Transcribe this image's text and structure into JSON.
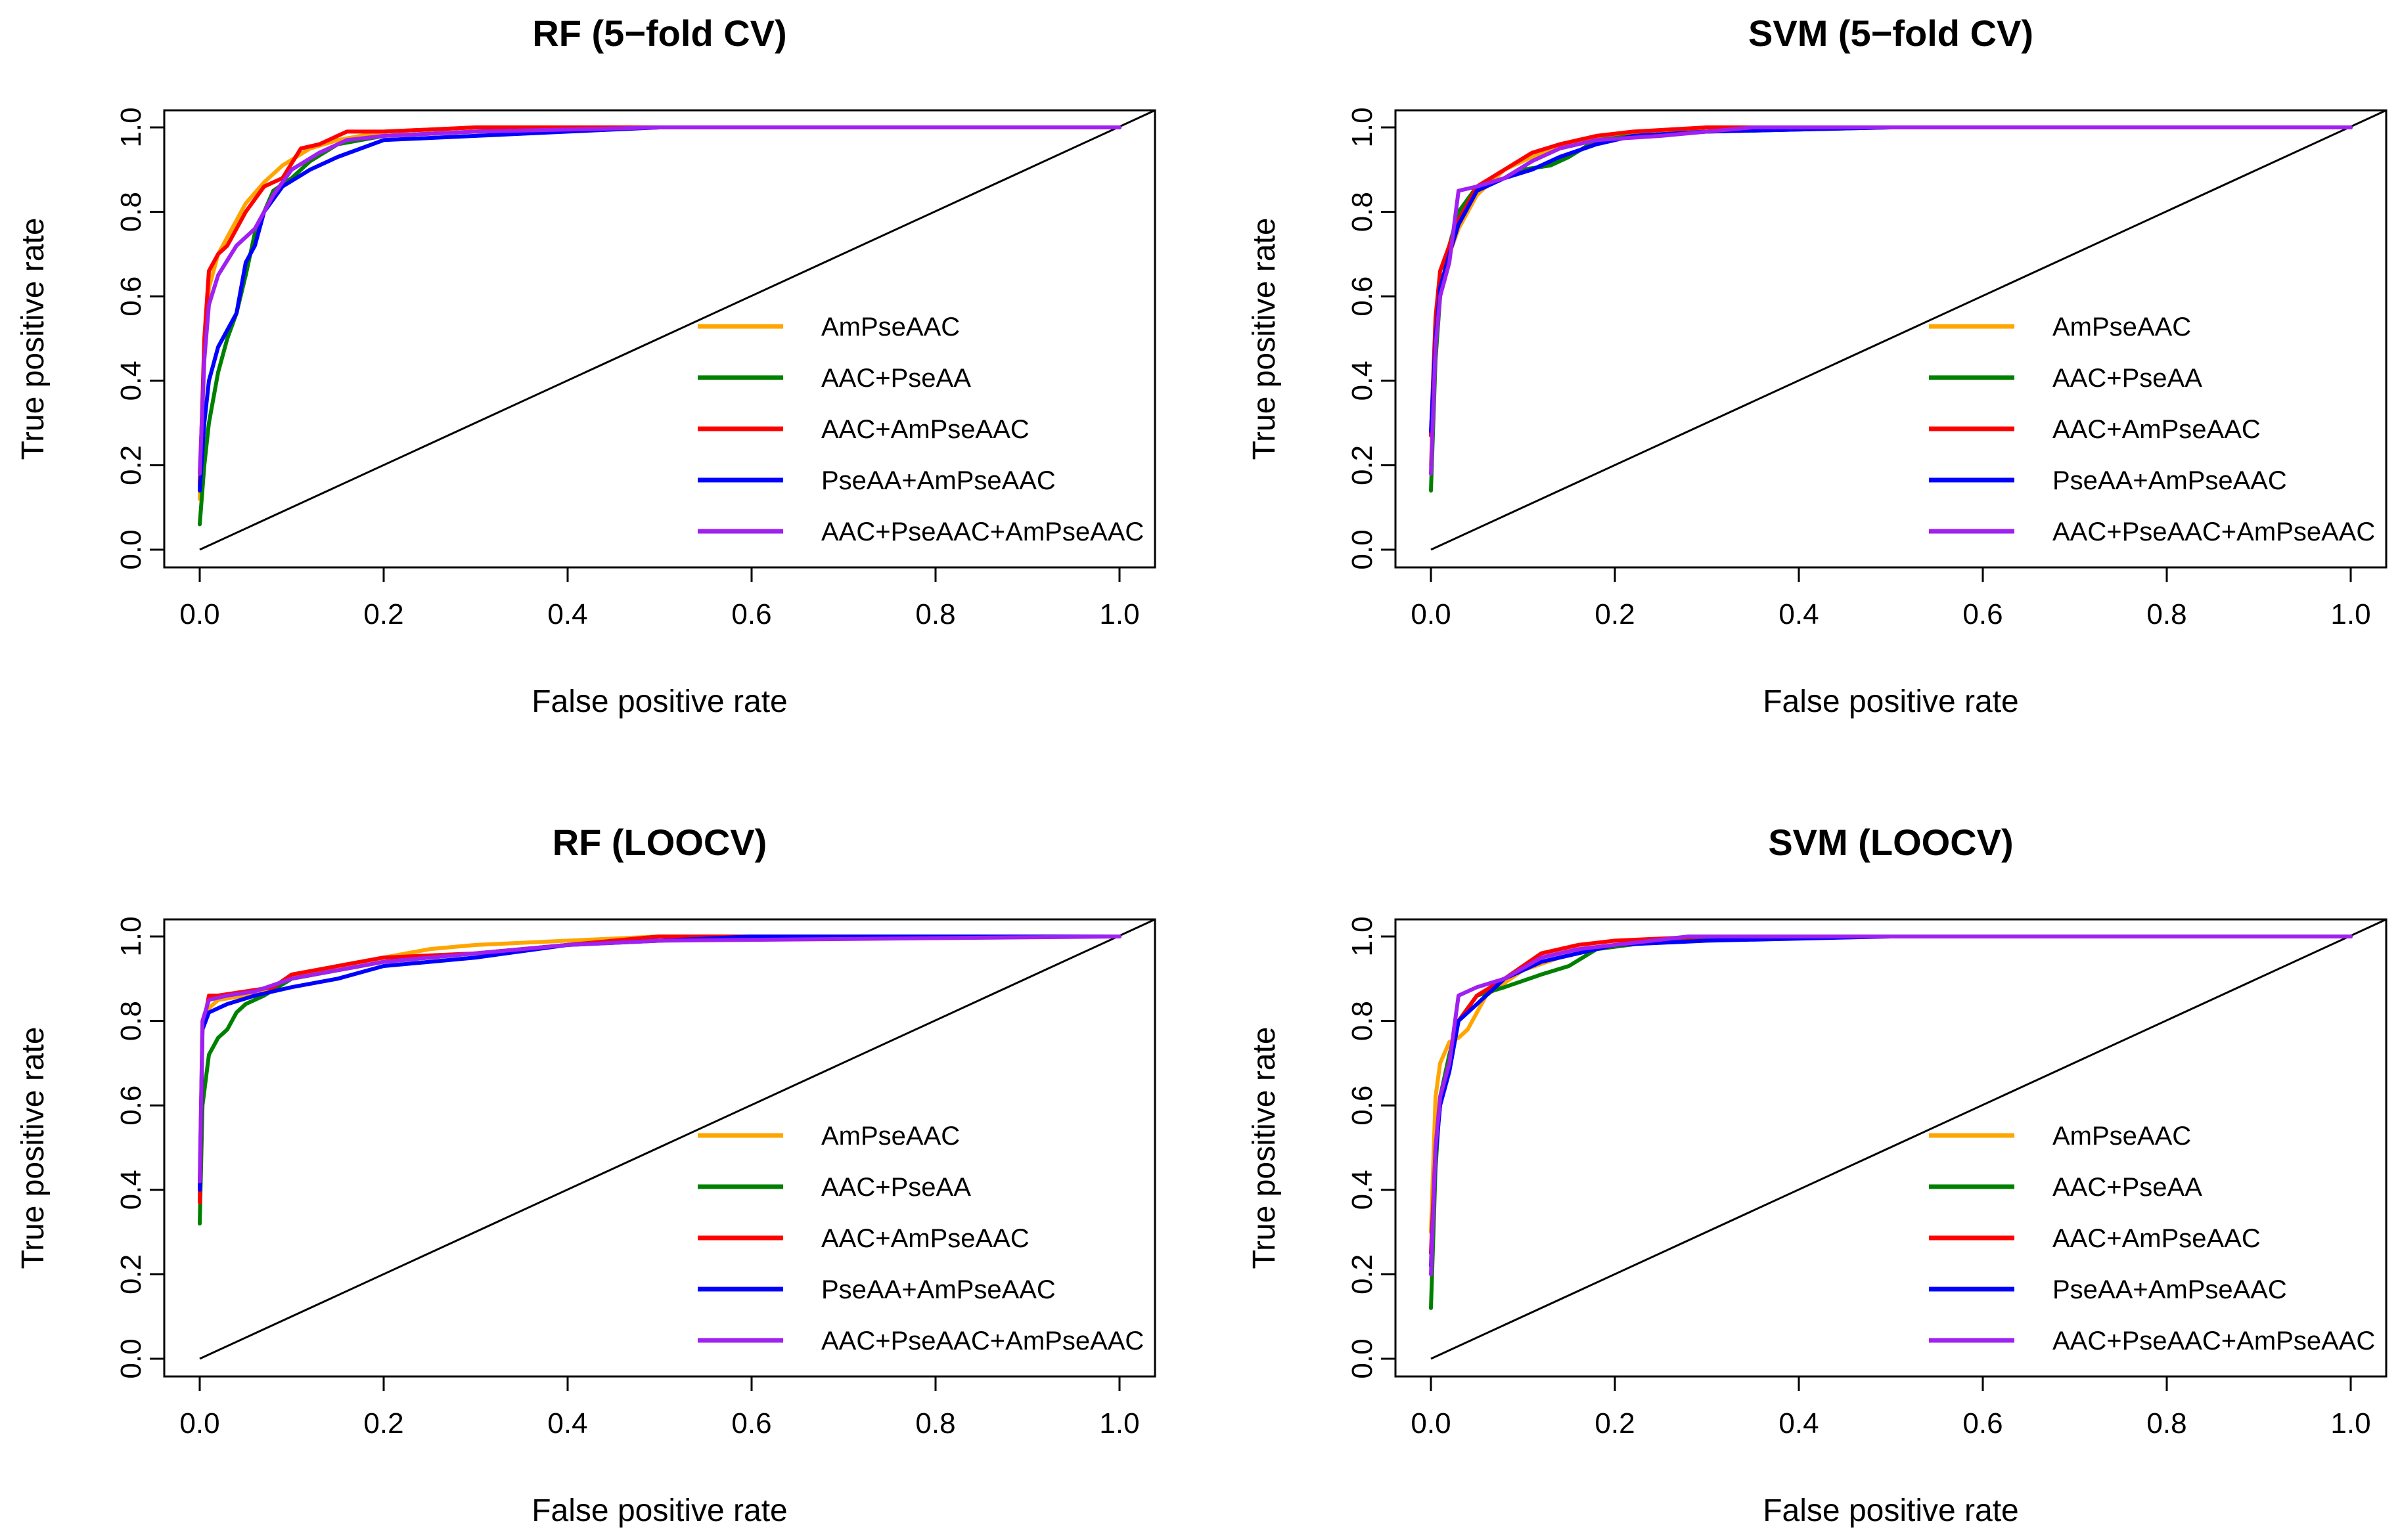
{
  "chart_data": [
    {
      "type": "line",
      "title": "RF (5−fold CV)",
      "xlabel": "False positive rate",
      "ylabel": "True positive rate",
      "xlim": [
        0,
        1
      ],
      "ylim": [
        0,
        1
      ],
      "xticks": [
        "0.0",
        "0.2",
        "0.4",
        "0.6",
        "0.8",
        "1.0"
      ],
      "yticks": [
        "0.0",
        "0.2",
        "0.4",
        "0.6",
        "0.8",
        "1.0"
      ],
      "legend_position": "bottom-right",
      "series": [
        {
          "name": "AmPseAAC",
          "color": "#FFA500",
          "x": [
            0,
            0.005,
            0.01,
            0.02,
            0.03,
            0.05,
            0.07,
            0.09,
            0.12,
            0.15,
            0.2,
            0.3,
            0.5,
            1
          ],
          "y": [
            0.12,
            0.45,
            0.62,
            0.7,
            0.74,
            0.82,
            0.87,
            0.91,
            0.95,
            0.97,
            0.99,
            1,
            1,
            1
          ]
        },
        {
          "name": "AAC+PseAA",
          "color": "#008000",
          "x": [
            0,
            0.005,
            0.01,
            0.02,
            0.03,
            0.04,
            0.05,
            0.06,
            0.08,
            0.1,
            0.12,
            0.15,
            0.2,
            0.3,
            0.5,
            1
          ],
          "y": [
            0.06,
            0.2,
            0.3,
            0.42,
            0.5,
            0.56,
            0.65,
            0.75,
            0.85,
            0.88,
            0.92,
            0.96,
            0.98,
            0.99,
            1,
            1
          ]
        },
        {
          "name": "AAC+AmPseAAC",
          "color": "#FF0000",
          "x": [
            0,
            0.005,
            0.01,
            0.02,
            0.03,
            0.05,
            0.07,
            0.09,
            0.11,
            0.13,
            0.16,
            0.2,
            0.3,
            0.5,
            1
          ],
          "y": [
            0.15,
            0.5,
            0.66,
            0.7,
            0.72,
            0.8,
            0.86,
            0.88,
            0.95,
            0.96,
            0.99,
            0.99,
            1,
            1,
            1
          ]
        },
        {
          "name": "PseAA+AmPseAAC",
          "color": "#0000FF",
          "x": [
            0,
            0.005,
            0.01,
            0.02,
            0.03,
            0.04,
            0.05,
            0.06,
            0.07,
            0.09,
            0.12,
            0.15,
            0.2,
            0.3,
            0.4,
            0.5,
            1
          ],
          "y": [
            0.14,
            0.3,
            0.4,
            0.48,
            0.52,
            0.56,
            0.68,
            0.72,
            0.8,
            0.86,
            0.9,
            0.93,
            0.97,
            0.98,
            0.99,
            1,
            1
          ]
        },
        {
          "name": "AAC+PseAAC+AmPseAAC",
          "color": "#A020F0",
          "x": [
            0,
            0.005,
            0.01,
            0.02,
            0.04,
            0.06,
            0.08,
            0.1,
            0.13,
            0.16,
            0.2,
            0.3,
            0.5,
            1
          ],
          "y": [
            0.18,
            0.45,
            0.58,
            0.65,
            0.72,
            0.76,
            0.84,
            0.9,
            0.94,
            0.97,
            0.98,
            0.99,
            1,
            1
          ]
        }
      ]
    },
    {
      "type": "line",
      "title": "SVM (5−fold CV)",
      "xlabel": "False positive rate",
      "ylabel": "True positive rate",
      "xlim": [
        0,
        1
      ],
      "ylim": [
        0,
        1
      ],
      "xticks": [
        "0.0",
        "0.2",
        "0.4",
        "0.6",
        "0.8",
        "1.0"
      ],
      "yticks": [
        "0.0",
        "0.2",
        "0.4",
        "0.6",
        "0.8",
        "1.0"
      ],
      "legend_position": "bottom-right",
      "series": [
        {
          "name": "AmPseAAC",
          "color": "#FFA500",
          "x": [
            0,
            0.005,
            0.01,
            0.02,
            0.03,
            0.05,
            0.08,
            0.1,
            0.13,
            0.16,
            0.2,
            0.3,
            0.5,
            1
          ],
          "y": [
            0.2,
            0.5,
            0.62,
            0.7,
            0.76,
            0.84,
            0.9,
            0.92,
            0.95,
            0.97,
            0.98,
            1,
            1,
            1
          ]
        },
        {
          "name": "AAC+PseAA",
          "color": "#008000",
          "x": [
            0,
            0.005,
            0.01,
            0.02,
            0.03,
            0.05,
            0.08,
            0.1,
            0.13,
            0.15,
            0.18,
            0.22,
            0.3,
            0.5,
            1
          ],
          "y": [
            0.14,
            0.45,
            0.6,
            0.72,
            0.8,
            0.86,
            0.88,
            0.9,
            0.91,
            0.93,
            0.97,
            0.98,
            0.99,
            1,
            1
          ]
        },
        {
          "name": "AAC+AmPseAAC",
          "color": "#FF0000",
          "x": [
            0,
            0.005,
            0.01,
            0.02,
            0.03,
            0.05,
            0.08,
            0.11,
            0.14,
            0.18,
            0.22,
            0.3,
            0.5,
            1
          ],
          "y": [
            0.27,
            0.55,
            0.66,
            0.72,
            0.78,
            0.86,
            0.9,
            0.94,
            0.96,
            0.98,
            0.99,
            1,
            1,
            1
          ]
        },
        {
          "name": "PseAA+AmPseAAC",
          "color": "#0000FF",
          "x": [
            0,
            0.005,
            0.01,
            0.02,
            0.03,
            0.05,
            0.08,
            0.11,
            0.14,
            0.18,
            0.22,
            0.3,
            0.5,
            1
          ],
          "y": [
            0.28,
            0.5,
            0.62,
            0.7,
            0.77,
            0.85,
            0.88,
            0.9,
            0.93,
            0.96,
            0.98,
            0.99,
            1,
            1
          ]
        },
        {
          "name": "AAC+PseAAC+AmPseAAC",
          "color": "#A020F0",
          "x": [
            0,
            0.005,
            0.01,
            0.02,
            0.03,
            0.05,
            0.08,
            0.11,
            0.14,
            0.18,
            0.25,
            0.35,
            0.5,
            1
          ],
          "y": [
            0.18,
            0.48,
            0.6,
            0.68,
            0.85,
            0.86,
            0.88,
            0.92,
            0.95,
            0.97,
            0.98,
            1,
            1,
            1
          ]
        }
      ]
    },
    {
      "type": "line",
      "title": "RF (LOOCV)",
      "xlabel": "False positive rate",
      "ylabel": "True positive rate",
      "xlim": [
        0,
        1
      ],
      "ylim": [
        0,
        1
      ],
      "xticks": [
        "0.0",
        "0.2",
        "0.4",
        "0.6",
        "0.8",
        "1.0"
      ],
      "yticks": [
        "0.0",
        "0.2",
        "0.4",
        "0.6",
        "0.8",
        "1.0"
      ],
      "legend_position": "bottom-right",
      "series": [
        {
          "name": "AmPseAAC",
          "color": "#FFA500",
          "x": [
            0,
            0.003,
            0.01,
            0.02,
            0.05,
            0.08,
            0.1,
            0.15,
            0.2,
            0.25,
            0.3,
            0.4,
            0.5,
            1
          ],
          "y": [
            0.4,
            0.8,
            0.83,
            0.85,
            0.86,
            0.88,
            0.9,
            0.93,
            0.95,
            0.97,
            0.98,
            0.99,
            1,
            1
          ]
        },
        {
          "name": "AAC+PseAA",
          "color": "#008000",
          "x": [
            0,
            0.003,
            0.01,
            0.02,
            0.03,
            0.04,
            0.05,
            0.07,
            0.1,
            0.15,
            0.2,
            0.3,
            0.4,
            0.5,
            1
          ],
          "y": [
            0.32,
            0.6,
            0.72,
            0.76,
            0.78,
            0.82,
            0.84,
            0.86,
            0.9,
            0.92,
            0.94,
            0.96,
            0.98,
            1,
            1
          ]
        },
        {
          "name": "AAC+AmPseAAC",
          "color": "#FF0000",
          "x": [
            0,
            0.003,
            0.01,
            0.02,
            0.05,
            0.08,
            0.1,
            0.15,
            0.2,
            0.3,
            0.4,
            0.5,
            1
          ],
          "y": [
            0.37,
            0.78,
            0.86,
            0.86,
            0.87,
            0.88,
            0.91,
            0.93,
            0.95,
            0.96,
            0.98,
            1,
            1
          ]
        },
        {
          "name": "PseAA+AmPseAAC",
          "color": "#0000FF",
          "x": [
            0,
            0.003,
            0.01,
            0.03,
            0.06,
            0.1,
            0.15,
            0.2,
            0.25,
            0.3,
            0.4,
            0.5,
            0.6,
            1
          ],
          "y": [
            0.4,
            0.78,
            0.82,
            0.84,
            0.86,
            0.88,
            0.9,
            0.93,
            0.94,
            0.95,
            0.98,
            0.99,
            1,
            1
          ]
        },
        {
          "name": "AAC+PseAAC+AmPseAAC",
          "color": "#A020F0",
          "x": [
            0,
            0.003,
            0.01,
            0.03,
            0.06,
            0.1,
            0.15,
            0.2,
            0.3,
            0.4,
            0.5,
            1
          ],
          "y": [
            0.42,
            0.8,
            0.85,
            0.86,
            0.87,
            0.9,
            0.92,
            0.94,
            0.96,
            0.98,
            0.99,
            1
          ]
        }
      ]
    },
    {
      "type": "line",
      "title": "SVM (LOOCV)",
      "xlabel": "False positive rate",
      "ylabel": "True positive rate",
      "xlim": [
        0,
        1
      ],
      "ylim": [
        0,
        1
      ],
      "xticks": [
        "0.0",
        "0.2",
        "0.4",
        "0.6",
        "0.8",
        "1.0"
      ],
      "yticks": [
        "0.0",
        "0.2",
        "0.4",
        "0.6",
        "0.8",
        "1.0"
      ],
      "legend_position": "bottom-right",
      "series": [
        {
          "name": "AmPseAAC",
          "color": "#FFA500",
          "x": [
            0,
            0.005,
            0.01,
            0.02,
            0.03,
            0.04,
            0.06,
            0.1,
            0.14,
            0.18,
            0.25,
            0.5,
            1
          ],
          "y": [
            0.3,
            0.62,
            0.7,
            0.75,
            0.76,
            0.78,
            0.86,
            0.92,
            0.95,
            0.97,
            0.99,
            1,
            1
          ]
        },
        {
          "name": "AAC+PseAA",
          "color": "#008000",
          "x": [
            0,
            0.005,
            0.01,
            0.02,
            0.03,
            0.05,
            0.08,
            0.12,
            0.15,
            0.18,
            0.25,
            0.35,
            0.5,
            1
          ],
          "y": [
            0.12,
            0.45,
            0.62,
            0.72,
            0.8,
            0.86,
            0.88,
            0.91,
            0.93,
            0.97,
            0.99,
            1,
            1,
            1
          ]
        },
        {
          "name": "AAC+AmPseAAC",
          "color": "#FF0000",
          "x": [
            0,
            0.005,
            0.01,
            0.02,
            0.03,
            0.05,
            0.08,
            0.12,
            0.16,
            0.2,
            0.3,
            0.5,
            1
          ],
          "y": [
            0.25,
            0.5,
            0.62,
            0.7,
            0.8,
            0.86,
            0.9,
            0.96,
            0.98,
            0.99,
            1,
            1,
            1
          ]
        },
        {
          "name": "PseAA+AmPseAAC",
          "color": "#0000FF",
          "x": [
            0,
            0.005,
            0.01,
            0.02,
            0.03,
            0.05,
            0.08,
            0.12,
            0.16,
            0.2,
            0.3,
            0.5,
            1
          ],
          "y": [
            0.22,
            0.48,
            0.6,
            0.68,
            0.8,
            0.84,
            0.9,
            0.94,
            0.96,
            0.98,
            0.99,
            1,
            1
          ]
        },
        {
          "name": "AAC+PseAAC+AmPseAAC",
          "color": "#A020F0",
          "x": [
            0,
            0.005,
            0.01,
            0.02,
            0.03,
            0.05,
            0.08,
            0.12,
            0.16,
            0.2,
            0.28,
            0.5,
            1
          ],
          "y": [
            0.2,
            0.5,
            0.62,
            0.7,
            0.86,
            0.88,
            0.9,
            0.95,
            0.97,
            0.98,
            1,
            1,
            1
          ]
        }
      ]
    }
  ]
}
